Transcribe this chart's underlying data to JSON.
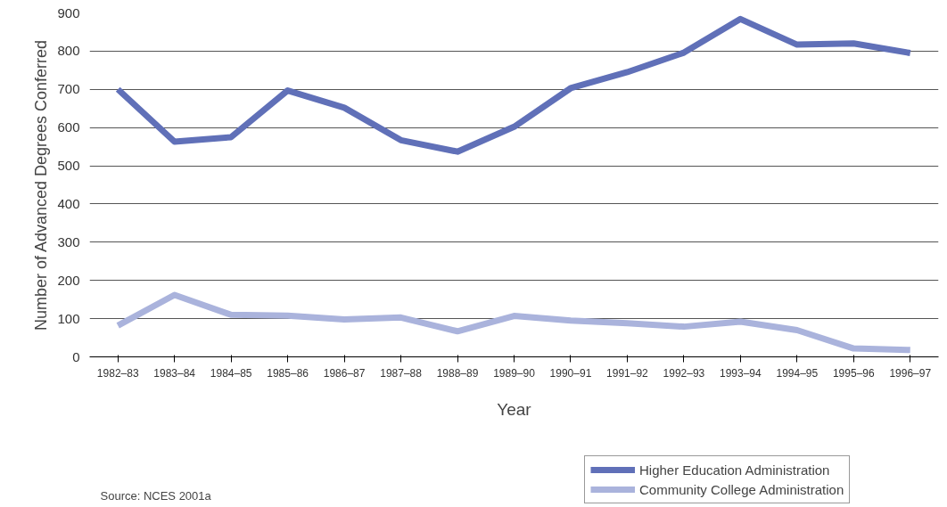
{
  "chart_data": {
    "type": "line",
    "xlabel": "Year",
    "ylabel": "Number of Advanced Degrees Conferred",
    "categories": [
      "1982–83",
      "1983–84",
      "1984–85",
      "1985–86",
      "1986–87",
      "1987–88",
      "1988–89",
      "1989–90",
      "1990–91",
      "1991–92",
      "1992–93",
      "1993–94",
      "1994–95",
      "1995–96",
      "1996–97"
    ],
    "series": [
      {
        "name": "Higher Education Administration",
        "color": "#6070b8",
        "values": [
          700,
          563,
          575,
          697,
          652,
          567,
          537,
          602,
          703,
          745,
          796,
          884,
          817,
          820,
          795
        ]
      },
      {
        "name": "Community College Administration",
        "color": "#aab3dc",
        "values": [
          82,
          162,
          110,
          108,
          98,
          103,
          67,
          107,
          95,
          88,
          79,
          92,
          70,
          22,
          18
        ]
      }
    ],
    "ylim": [
      0,
      900
    ],
    "yticks": [
      0,
      100,
      200,
      300,
      400,
      500,
      600,
      700,
      800,
      900
    ],
    "grid": "y",
    "legend": "bottom right",
    "marker": "none",
    "line_style": "solid",
    "annotations": [
      "Source: NCES 2001a"
    ]
  }
}
